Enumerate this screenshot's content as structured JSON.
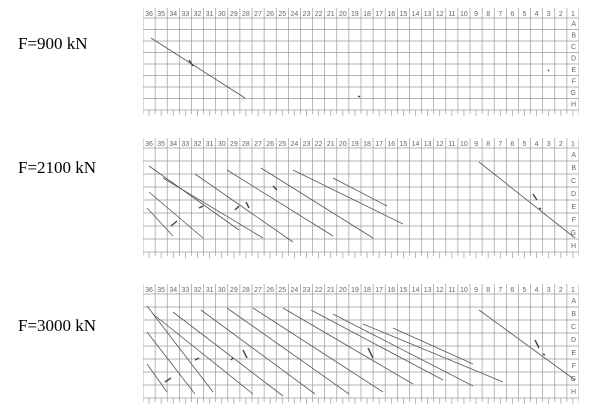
{
  "figure": {
    "panels": [
      {
        "label": "F=900 kN",
        "top_headers": [
          "36",
          "35",
          "34",
          "33",
          "32",
          "31",
          "30",
          "29",
          "28",
          "27",
          "26",
          "25",
          "24",
          "23",
          "22",
          "21",
          "20",
          "19",
          "18",
          "17",
          "16",
          "15",
          "14",
          "13",
          "12",
          "11",
          "10",
          "9",
          "8",
          "7",
          "6",
          "5",
          "4",
          "3",
          "2",
          "1"
        ],
        "row_letters": [
          "A",
          "B",
          "C",
          "D",
          "E",
          "F",
          "G",
          "H"
        ]
      },
      {
        "label": "F=2100 kN",
        "top_headers": [
          "36",
          "35",
          "34",
          "33",
          "32",
          "31",
          "30",
          "29",
          "28",
          "27",
          "26",
          "25",
          "24",
          "23",
          "22",
          "21",
          "20",
          "19",
          "18",
          "17",
          "16",
          "15",
          "14",
          "13",
          "12",
          "11",
          "10",
          "9",
          "8",
          "7",
          "6",
          "5",
          "4",
          "3",
          "2",
          "1"
        ],
        "row_letters": [
          "A",
          "B",
          "C",
          "D",
          "E",
          "F",
          "G",
          "H"
        ]
      },
      {
        "label": "F=3000 kN",
        "top_headers": [
          "36",
          "35",
          "34",
          "33",
          "32",
          "31",
          "30",
          "29",
          "28",
          "27",
          "26",
          "25",
          "24",
          "23",
          "22",
          "21",
          "20",
          "19",
          "18",
          "17",
          "16",
          "15",
          "14",
          "13",
          "12",
          "11",
          "10",
          "9",
          "8",
          "7",
          "6",
          "5",
          "4",
          "3",
          "2",
          "1"
        ],
        "row_letters": [
          "A",
          "B",
          "C",
          "D",
          "E",
          "F",
          "G",
          "H"
        ]
      }
    ]
  }
}
